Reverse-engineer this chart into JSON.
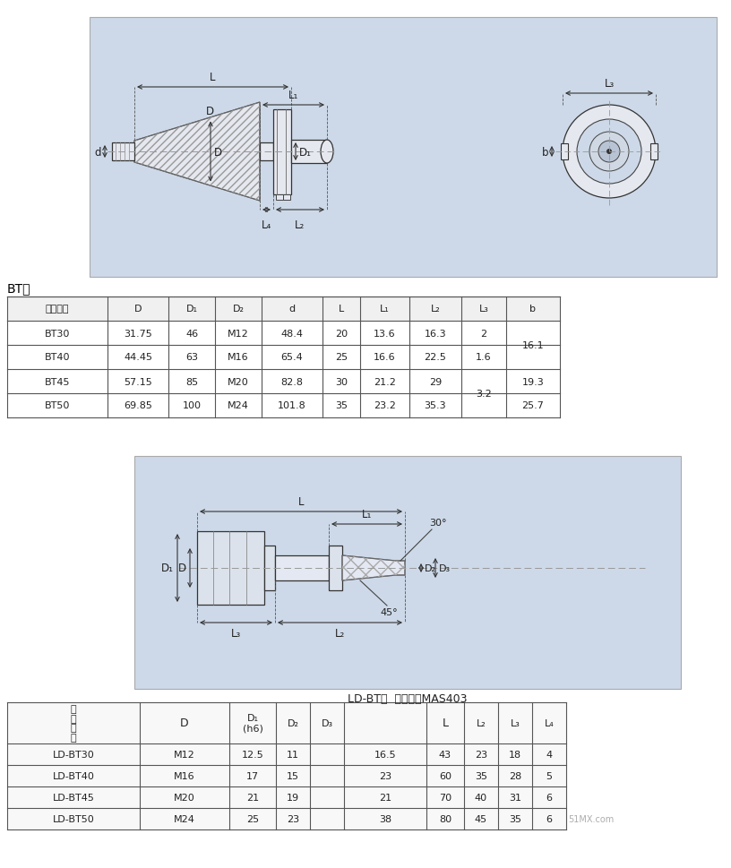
{
  "page_bg": "#ffffff",
  "diag_bg": "#cdd9e8",
  "bt_type_label": "BT型",
  "bt_table_headers": [
    "柄部型号",
    "D",
    "D₁",
    "D₂",
    "d",
    "L",
    "L₁",
    "L₂",
    "L₃",
    "b"
  ],
  "bt_table_data": [
    [
      "BT30",
      "31.75",
      "46",
      "M12",
      "48.4",
      "20",
      "13.6",
      "16.3",
      "2",
      "16.1"
    ],
    [
      "BT40",
      "44.45",
      "63",
      "M16",
      "65.4",
      "25",
      "16.6",
      "22.5",
      "1.6",
      "16.1"
    ],
    [
      "BT45",
      "57.15",
      "85",
      "M20",
      "82.8",
      "30",
      "21.2",
      "29",
      "3.2",
      "19.3"
    ],
    [
      "BT50",
      "69.85",
      "100",
      "M24",
      "101.8",
      "35",
      "23.2",
      "35.3",
      "3.2",
      "25.7"
    ]
  ],
  "ld_bt_label": "LD-BT型  日本标准MAS403",
  "ld_table_data": [
    [
      "LD-BT30",
      "M12",
      "12.5",
      "11",
      "16.5",
      "43",
      "23",
      "18",
      "4"
    ],
    [
      "LD-BT40",
      "M16",
      "17",
      "15",
      "23",
      "60",
      "35",
      "28",
      "5"
    ],
    [
      "LD-BT45",
      "M20",
      "21",
      "19",
      "21",
      "70",
      "40",
      "31",
      "6"
    ],
    [
      "LD-BT50",
      "M24",
      "25",
      "23",
      "38",
      "80",
      "45",
      "35",
      "6"
    ]
  ],
  "watermark": "51MX.com",
  "lc": "#555555"
}
